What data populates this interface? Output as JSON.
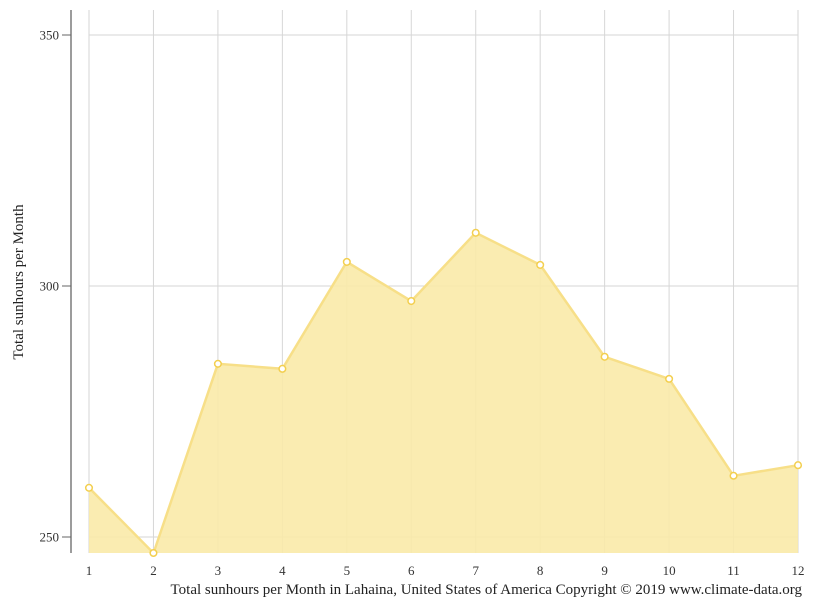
{
  "chart_data": {
    "type": "area",
    "title": "Total sunhours per Month in Lahaina, United States of America Copyright © 2019 www.climate-data.org",
    "xlabel": "",
    "ylabel": "Total sunhours per Month",
    "categories": [
      "1",
      "2",
      "3",
      "4",
      "5",
      "6",
      "7",
      "8",
      "9",
      "10",
      "11",
      "12"
    ],
    "series": [
      {
        "name": "Total sunhours per Month",
        "values": [
          259.8,
          246.8,
          284.5,
          283.5,
          304.8,
          297.0,
          310.6,
          304.2,
          285.9,
          281.5,
          262.2,
          264.3
        ],
        "color": "#f9e79f"
      }
    ],
    "yticks": [
      250,
      300,
      350
    ],
    "ylim": [
      246.8,
      353
    ],
    "grid": true,
    "legend": "none"
  },
  "footer": {
    "caption": "Total sunhours per Month in Lahaina, United States of America Copyright © 2019 www.climate-data.org"
  },
  "colors": {
    "fill": "#f9eaa8",
    "line": "#f7df88",
    "marker": "#f3cf4f",
    "grid": "#d6d6d6",
    "axis": "#666666"
  }
}
